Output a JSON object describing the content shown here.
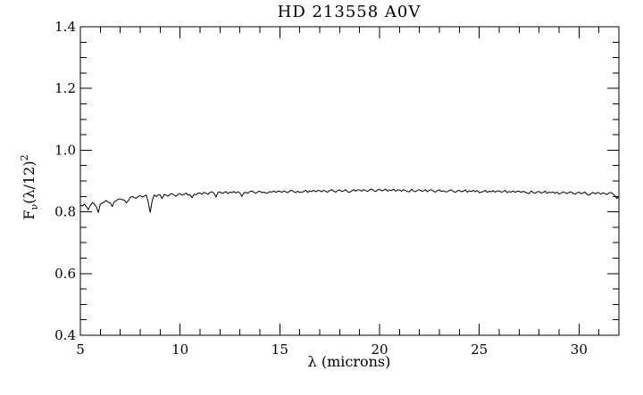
{
  "figure": {
    "title": "HD 213558 A0V",
    "xlabel": "λ (microns)",
    "ylabel": "Fν(λ/12)²",
    "ylabel_parts": [
      {
        "text": "F",
        "script": "normal"
      },
      {
        "text": "ν",
        "script": "sub"
      },
      {
        "text": "(λ/12)",
        "script": "normal"
      },
      {
        "text": "2",
        "script": "sup"
      }
    ],
    "colors": {
      "foreground": "#000000",
      "background": "#ffffff"
    }
  },
  "chart_data": {
    "type": "line",
    "title": "HD 213558 A0V",
    "xlabel": "λ (microns)",
    "ylabel": "Fν(λ/12)²",
    "xlim": [
      5,
      32
    ],
    "ylim": [
      0.4,
      1.4
    ],
    "x_ticks": [
      5,
      10,
      15,
      20,
      25,
      30
    ],
    "y_ticks": [
      0.4,
      0.6,
      0.8,
      1.0,
      1.2,
      1.4
    ],
    "x_minor_step": 1,
    "y_minor_step": 0.05,
    "grid": false,
    "legend": false,
    "description": "Flat stellar spectrum of A0V standard star HD 213558, flux ratio near 0.86 from 5 to 32 microns with narrow absorption dips near 5.4, 5.9, 6.6, 7.3, 8.5, 10.6 and 13.1 microns and a dip at the long-wavelength end",
    "series": [
      {
        "name": "HD 213558 spectrum",
        "x_start": 5.0,
        "x_step": 0.1,
        "values": [
          0.822,
          0.819,
          0.825,
          0.817,
          0.807,
          0.821,
          0.83,
          0.826,
          0.816,
          0.798,
          0.825,
          0.829,
          0.832,
          0.837,
          0.831,
          0.829,
          0.817,
          0.833,
          0.836,
          0.841,
          0.842,
          0.839,
          0.839,
          0.829,
          0.836,
          0.847,
          0.85,
          0.846,
          0.844,
          0.85,
          0.853,
          0.848,
          0.851,
          0.855,
          0.833,
          0.798,
          0.836,
          0.855,
          0.85,
          0.855,
          0.855,
          0.843,
          0.857,
          0.854,
          0.851,
          0.857,
          0.859,
          0.854,
          0.851,
          0.857,
          0.859,
          0.854,
          0.857,
          0.861,
          0.854,
          0.855,
          0.846,
          0.857,
          0.856,
          0.861,
          0.861,
          0.857,
          0.863,
          0.86,
          0.857,
          0.863,
          0.865,
          0.86,
          0.848,
          0.863,
          0.865,
          0.86,
          0.862,
          0.866,
          0.859,
          0.864,
          0.862,
          0.866,
          0.861,
          0.865,
          0.861,
          0.85,
          0.862,
          0.863,
          0.86,
          0.866,
          0.868,
          0.863,
          0.86,
          0.865,
          0.867,
          0.862,
          0.864,
          0.861,
          0.861,
          0.866,
          0.864,
          0.868,
          0.863,
          0.867,
          0.867,
          0.863,
          0.868,
          0.865,
          0.862,
          0.868,
          0.87,
          0.865,
          0.862,
          0.867,
          0.863,
          0.864,
          0.866,
          0.87,
          0.863,
          0.868,
          0.866,
          0.87,
          0.865,
          0.869,
          0.869,
          0.865,
          0.87,
          0.867,
          0.864,
          0.869,
          0.872,
          0.867,
          0.864,
          0.869,
          0.871,
          0.866,
          0.868,
          0.872,
          0.865,
          0.863,
          0.868,
          0.872,
          0.867,
          0.871,
          0.871,
          0.867,
          0.872,
          0.869,
          0.866,
          0.871,
          0.874,
          0.869,
          0.866,
          0.871,
          0.873,
          0.868,
          0.87,
          0.874,
          0.867,
          0.871,
          0.869,
          0.873,
          0.867,
          0.871,
          0.871,
          0.867,
          0.872,
          0.869,
          0.866,
          0.865,
          0.873,
          0.868,
          0.865,
          0.87,
          0.872,
          0.867,
          0.868,
          0.872,
          0.865,
          0.87,
          0.872,
          0.867,
          0.864,
          0.869,
          0.871,
          0.866,
          0.868,
          0.865,
          0.865,
          0.87,
          0.871,
          0.866,
          0.863,
          0.868,
          0.87,
          0.865,
          0.867,
          0.871,
          0.864,
          0.868,
          0.866,
          0.87,
          0.865,
          0.869,
          0.862,
          0.864,
          0.866,
          0.87,
          0.863,
          0.867,
          0.865,
          0.869,
          0.864,
          0.868,
          0.868,
          0.864,
          0.866,
          0.87,
          0.862,
          0.866,
          0.864,
          0.868,
          0.863,
          0.867,
          0.867,
          0.863,
          0.867,
          0.864,
          0.861,
          0.859,
          0.868,
          0.863,
          0.86,
          0.865,
          0.866,
          0.861,
          0.863,
          0.867,
          0.86,
          0.864,
          0.862,
          0.865,
          0.86,
          0.864,
          0.858,
          0.86,
          0.865,
          0.862,
          0.859,
          0.863,
          0.865,
          0.86,
          0.857,
          0.862,
          0.864,
          0.859,
          0.861,
          0.864,
          0.857,
          0.854,
          0.859,
          0.863,
          0.858,
          0.862,
          0.862,
          0.857,
          0.862,
          0.859,
          0.856,
          0.861,
          0.863,
          0.858,
          0.853,
          0.843,
          0.851
        ]
      }
    ]
  }
}
